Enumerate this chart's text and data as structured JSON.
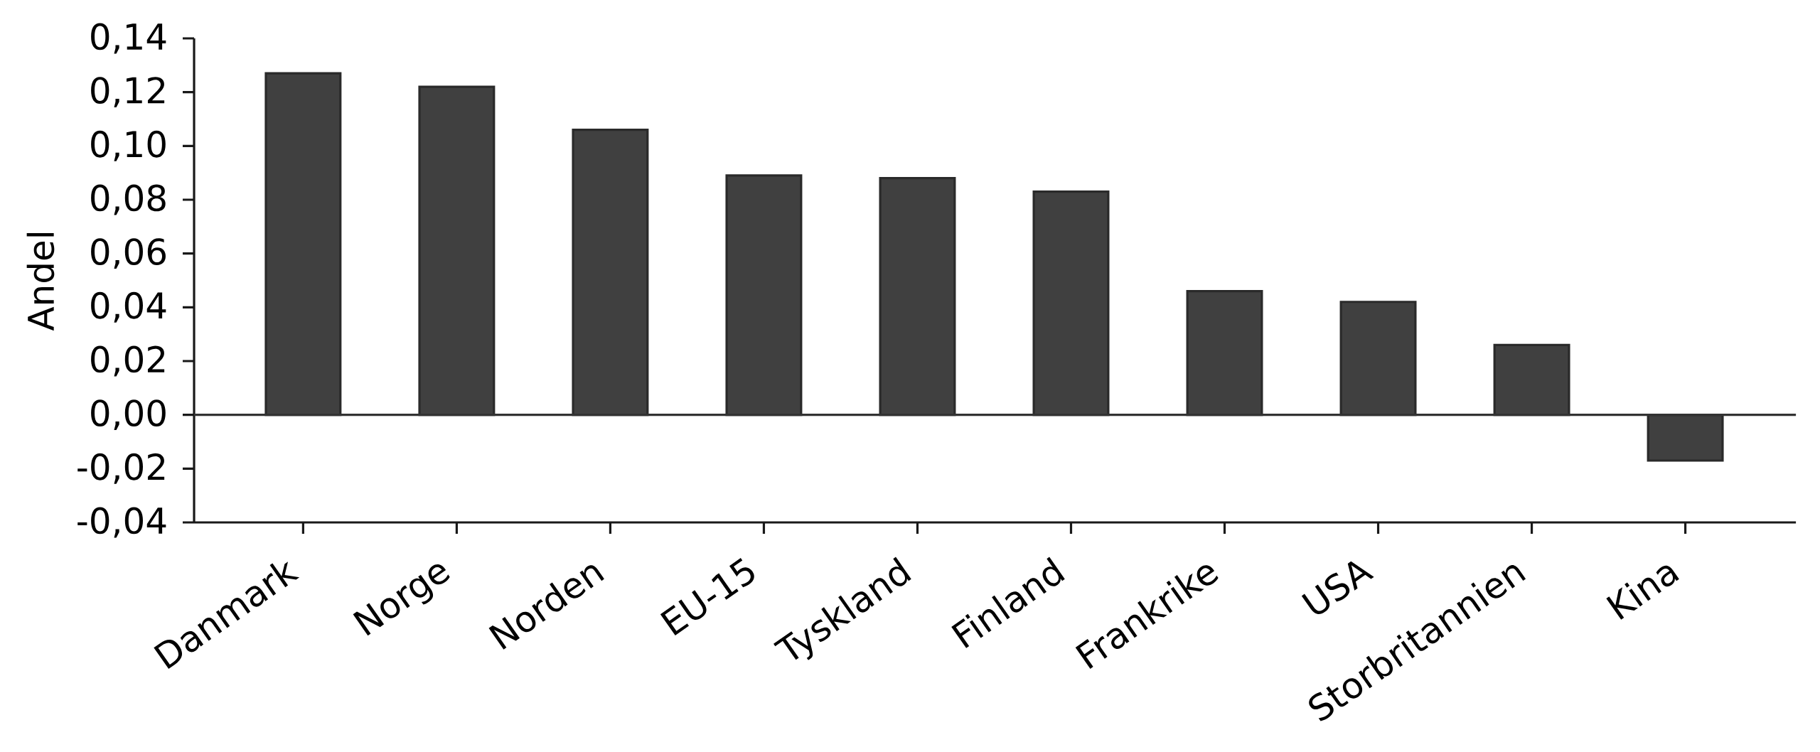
{
  "chart_data": {
    "type": "bar",
    "ylabel": "Andel",
    "categories": [
      "Danmark",
      "Norge",
      "Norden",
      "EU-15",
      "Tyskland",
      "Finland",
      "Frankrike",
      "USA",
      "Storbritannien",
      "Kina"
    ],
    "values": [
      0.127,
      0.122,
      0.106,
      0.089,
      0.088,
      0.083,
      0.046,
      0.042,
      0.026,
      -0.017
    ],
    "color": "#404040",
    "ylim": [
      -0.04,
      0.14
    ],
    "yticks": [
      {
        "value": -0.04,
        "label": "-0,04"
      },
      {
        "value": -0.02,
        "label": "-0,02"
      },
      {
        "value": 0,
        "label": "0,00"
      },
      {
        "value": 0.02,
        "label": "0,02"
      },
      {
        "value": 0.04,
        "label": "0,04"
      },
      {
        "value": 0.06,
        "label": "0,06"
      },
      {
        "value": 0.08,
        "label": "0,08"
      },
      {
        "value": 0.1,
        "label": "0,10"
      },
      {
        "value": 0.12,
        "label": "0,12"
      },
      {
        "value": 0.14,
        "label": "0,14"
      }
    ],
    "ref_lines": [
      {
        "axis": "y",
        "value": 0,
        "color": "#333333"
      }
    ],
    "grid": false
  }
}
